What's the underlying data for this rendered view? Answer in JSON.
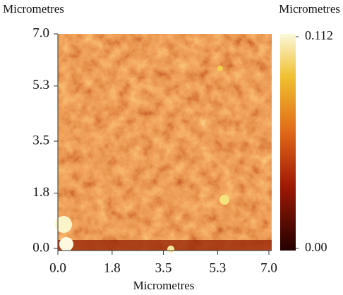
{
  "chart_data": {
    "type": "image",
    "ylabel": "Micrometres",
    "xlabel": "Micrometres",
    "colorbar_label": "Micrometres",
    "xlim": [
      0,
      7.0
    ],
    "ylim": [
      0,
      7.0
    ],
    "xticks": [
      {
        "value": 0,
        "label": "0.0"
      },
      1.8,
      3.5,
      5.3,
      {
        "value": 7,
        "label": "7.0"
      }
    ],
    "yticks": [
      {
        "value": 0,
        "label": "0.0"
      },
      1.8,
      3.5,
      5.3,
      {
        "value": 7,
        "label": "7.0"
      }
    ],
    "clim": [
      0,
      0.112
    ],
    "cticks": [
      {
        "value": 0,
        "label": "0.00"
      },
      0.112
    ]
  }
}
